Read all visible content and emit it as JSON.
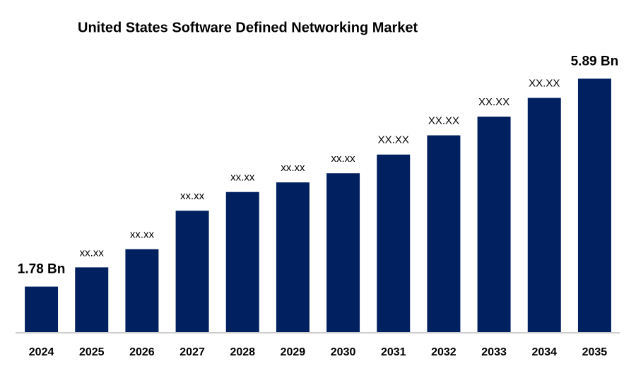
{
  "chart_data": {
    "type": "bar",
    "title": "United States Software Defined Networking Market",
    "categories": [
      "2024",
      "2025",
      "2026",
      "2027",
      "2028",
      "2029",
      "2030",
      "2031",
      "2032",
      "2033",
      "2034",
      "2035"
    ],
    "values": [
      1.78,
      2.16,
      2.52,
      3.28,
      3.65,
      3.84,
      4.02,
      4.39,
      4.77,
      5.14,
      5.51,
      5.89
    ],
    "value_labels": [
      "1.78 Bn",
      "xx.xx",
      "xx.xx",
      "xx.xx",
      "xx.xx",
      "xx.xx",
      "xx.xx",
      "XX.XX",
      "XX.XX",
      "XX.XX",
      "XX.XX",
      "5.89  Bn"
    ],
    "color": "#002060",
    "ylim": [
      0.88,
      6.3
    ]
  }
}
